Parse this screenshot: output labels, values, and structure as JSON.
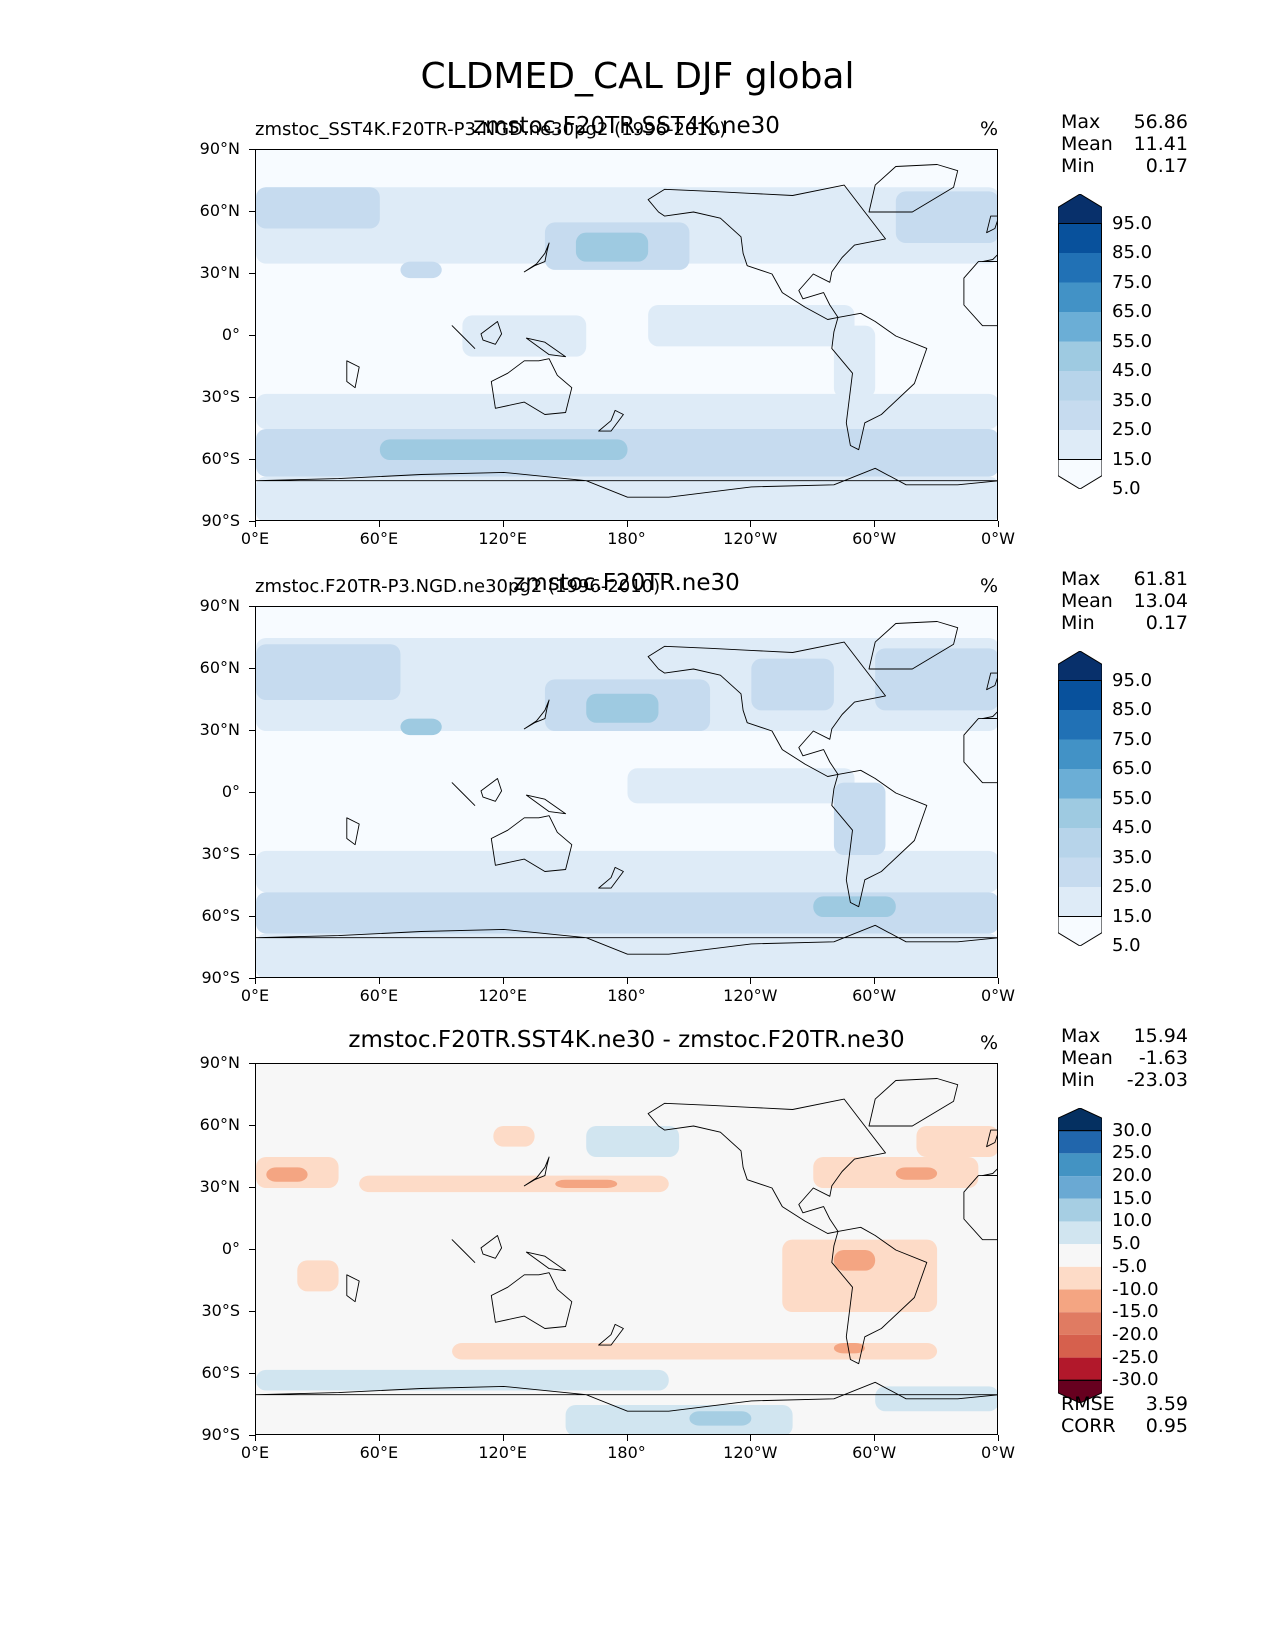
{
  "figure": {
    "title": "CLDMED_CAL DJF global"
  },
  "chart_data": [
    {
      "type": "heatmap",
      "panel_id": "test",
      "title": "zmstoc.F20TR.SST4K.ne30",
      "subtitle": "zmstoc_SST4K.F20TR-P3.NGD.ne30pg2 (1996-2010)",
      "units": "%",
      "yticks": [
        "90°N",
        "60°N",
        "30°N",
        "0°",
        "30°S",
        "60°S",
        "90°S"
      ],
      "xticks": [
        "0°E",
        "60°E",
        "120°E",
        "180°",
        "120°W",
        "60°W",
        "0°W"
      ],
      "xlim": [
        0,
        360
      ],
      "ylim": [
        -90,
        90
      ],
      "stats": {
        "max_label": "Max",
        "max": "56.86",
        "mean_label": "Mean",
        "mean": "11.41",
        "min_label": "Min",
        "min": "0.17"
      },
      "colorbar": {
        "labels": [
          "95.0",
          "85.0",
          "75.0",
          "65.0",
          "55.0",
          "45.0",
          "35.0",
          "25.0",
          "15.0",
          "5.0"
        ],
        "colors": [
          "#08306b",
          "#08519c",
          "#2171b5",
          "#4292c6",
          "#6baed6",
          "#9ecae1",
          "#b7d4ea",
          "#c6dbef",
          "#deebf7",
          "#f7fbff"
        ],
        "extend": "both"
      },
      "map_colors": [
        "#f7fbff",
        "#deebf7",
        "#c6dbef",
        "#9ecae1",
        "#6baed6"
      ],
      "regions": [
        {
          "lon": [
            0,
            360
          ],
          "lat": [
            -45,
            -28
          ],
          "level": 1
        },
        {
          "lon": [
            0,
            360
          ],
          "lat": [
            -68,
            -45
          ],
          "level": 2
        },
        {
          "lon": [
            0,
            360
          ],
          "lat": [
            -90,
            -68
          ],
          "level": 1
        },
        {
          "lon": [
            0,
            360
          ],
          "lat": [
            35,
            72
          ],
          "level": 1
        },
        {
          "lon": [
            0,
            60
          ],
          "lat": [
            52,
            72
          ],
          "level": 2
        },
        {
          "lon": [
            140,
            210
          ],
          "lat": [
            32,
            55
          ],
          "level": 2
        },
        {
          "lon": [
            155,
            190
          ],
          "lat": [
            36,
            50
          ],
          "level": 3
        },
        {
          "lon": [
            310,
            360
          ],
          "lat": [
            45,
            70
          ],
          "level": 2
        },
        {
          "lon": [
            70,
            90
          ],
          "lat": [
            28,
            36
          ],
          "level": 2
        },
        {
          "lon": [
            190,
            290
          ],
          "lat": [
            -5,
            15
          ],
          "level": 1
        },
        {
          "lon": [
            280,
            300
          ],
          "lat": [
            -30,
            5
          ],
          "level": 1
        },
        {
          "lon": [
            100,
            160
          ],
          "lat": [
            -10,
            10
          ],
          "level": 1
        },
        {
          "lon": [
            60,
            180
          ],
          "lat": [
            -60,
            -50
          ],
          "level": 3
        }
      ]
    },
    {
      "type": "heatmap",
      "panel_id": "reference",
      "title": "zmstoc.F20TR.ne30",
      "subtitle": "zmstoc.F20TR-P3.NGD.ne30pg2 (1996-2010)",
      "units": "%",
      "yticks": [
        "90°N",
        "60°N",
        "30°N",
        "0°",
        "30°S",
        "60°S",
        "90°S"
      ],
      "xticks": [
        "0°E",
        "60°E",
        "120°E",
        "180°",
        "120°W",
        "60°W",
        "0°W"
      ],
      "xlim": [
        0,
        360
      ],
      "ylim": [
        -90,
        90
      ],
      "stats": {
        "max_label": "Max",
        "max": "61.81",
        "mean_label": "Mean",
        "mean": "13.04",
        "min_label": "Min",
        "min": "0.17"
      },
      "colorbar": {
        "labels": [
          "95.0",
          "85.0",
          "75.0",
          "65.0",
          "55.0",
          "45.0",
          "35.0",
          "25.0",
          "15.0",
          "5.0"
        ],
        "colors": [
          "#08306b",
          "#08519c",
          "#2171b5",
          "#4292c6",
          "#6baed6",
          "#9ecae1",
          "#b7d4ea",
          "#c6dbef",
          "#deebf7",
          "#f7fbff"
        ],
        "extend": "both"
      },
      "map_colors": [
        "#f7fbff",
        "#deebf7",
        "#c6dbef",
        "#9ecae1",
        "#6baed6"
      ],
      "regions": [
        {
          "lon": [
            0,
            360
          ],
          "lat": [
            -48,
            -28
          ],
          "level": 1
        },
        {
          "lon": [
            0,
            360
          ],
          "lat": [
            -68,
            -48
          ],
          "level": 2
        },
        {
          "lon": [
            0,
            360
          ],
          "lat": [
            -90,
            -68
          ],
          "level": 1
        },
        {
          "lon": [
            0,
            360
          ],
          "lat": [
            30,
            75
          ],
          "level": 1
        },
        {
          "lon": [
            0,
            70
          ],
          "lat": [
            45,
            72
          ],
          "level": 2
        },
        {
          "lon": [
            140,
            220
          ],
          "lat": [
            30,
            55
          ],
          "level": 2
        },
        {
          "lon": [
            160,
            195
          ],
          "lat": [
            34,
            48
          ],
          "level": 3
        },
        {
          "lon": [
            240,
            280
          ],
          "lat": [
            40,
            65
          ],
          "level": 2
        },
        {
          "lon": [
            300,
            360
          ],
          "lat": [
            40,
            70
          ],
          "level": 2
        },
        {
          "lon": [
            70,
            90
          ],
          "lat": [
            28,
            36
          ],
          "level": 3
        },
        {
          "lon": [
            180,
            290
          ],
          "lat": [
            -5,
            12
          ],
          "level": 1
        },
        {
          "lon": [
            280,
            305
          ],
          "lat": [
            -30,
            5
          ],
          "level": 2
        },
        {
          "lon": [
            270,
            310
          ],
          "lat": [
            -60,
            -50
          ],
          "level": 3
        }
      ]
    },
    {
      "type": "heatmap",
      "panel_id": "difference",
      "title": "zmstoc.F20TR.SST4K.ne30 - zmstoc.F20TR.ne30",
      "subtitle": "",
      "units": "%",
      "yticks": [
        "90°N",
        "60°N",
        "30°N",
        "0°",
        "30°S",
        "60°S",
        "90°S"
      ],
      "xticks": [
        "0°E",
        "60°E",
        "120°E",
        "180°",
        "120°W",
        "60°W",
        "0°W"
      ],
      "xlim": [
        0,
        360
      ],
      "ylim": [
        -90,
        90
      ],
      "stats": {
        "max_label": "Max",
        "max": "15.94",
        "mean_label": "Mean",
        "mean": "-1.63",
        "min_label": "Min",
        "min": "-23.03"
      },
      "metrics": {
        "rmse_label": "RMSE",
        "rmse": "3.59",
        "corr_label": "CORR",
        "corr": "0.95"
      },
      "colorbar": {
        "labels": [
          "30.0",
          "25.0",
          "20.0",
          "15.0",
          "10.0",
          "5.0",
          "-5.0",
          "-10.0",
          "-15.0",
          "-20.0",
          "-25.0",
          "-30.0"
        ],
        "colors": [
          "#053061",
          "#2166ac",
          "#4393c3",
          "#6aa9d3",
          "#a6cee3",
          "#d1e5f0",
          "#f7f7f7",
          "#fddbc7",
          "#f4a582",
          "#e07b62",
          "#d6604d",
          "#b2182b",
          "#67001f"
        ],
        "extend": "both"
      },
      "map_colors": [
        "#f7f7f7",
        "#fddbc7",
        "#f4a582",
        "#d1e5f0",
        "#a6cee3"
      ],
      "regions": [
        {
          "lon": [
            0,
            40
          ],
          "lat": [
            30,
            45
          ],
          "level": 1
        },
        {
          "lon": [
            5,
            25
          ],
          "lat": [
            33,
            40
          ],
          "level": 2
        },
        {
          "lon": [
            50,
            200
          ],
          "lat": [
            28,
            36
          ],
          "level": 1
        },
        {
          "lon": [
            145,
            175
          ],
          "lat": [
            30,
            34
          ],
          "level": 2
        },
        {
          "lon": [
            115,
            135
          ],
          "lat": [
            50,
            60
          ],
          "level": 1
        },
        {
          "lon": [
            160,
            205
          ],
          "lat": [
            45,
            60
          ],
          "level": 3
        },
        {
          "lon": [
            270,
            350
          ],
          "lat": [
            30,
            45
          ],
          "level": 1
        },
        {
          "lon": [
            310,
            330
          ],
          "lat": [
            34,
            40
          ],
          "level": 2
        },
        {
          "lon": [
            320,
            360
          ],
          "lat": [
            45,
            60
          ],
          "level": 1
        },
        {
          "lon": [
            255,
            330
          ],
          "lat": [
            -30,
            5
          ],
          "level": 1
        },
        {
          "lon": [
            280,
            300
          ],
          "lat": [
            -10,
            0
          ],
          "level": 2
        },
        {
          "lon": [
            20,
            40
          ],
          "lat": [
            -20,
            -5
          ],
          "level": 1
        },
        {
          "lon": [
            95,
            330
          ],
          "lat": [
            -53,
            -45
          ],
          "level": 1
        },
        {
          "lon": [
            280,
            295
          ],
          "lat": [
            -50,
            -45
          ],
          "level": 2
        },
        {
          "lon": [
            0,
            200
          ],
          "lat": [
            -68,
            -58
          ],
          "level": 3
        },
        {
          "lon": [
            150,
            260
          ],
          "lat": [
            -90,
            -75
          ],
          "level": 3
        },
        {
          "lon": [
            210,
            240
          ],
          "lat": [
            -85,
            -78
          ],
          "level": 4
        },
        {
          "lon": [
            300,
            360
          ],
          "lat": [
            -78,
            -66
          ],
          "level": 3
        }
      ]
    }
  ]
}
